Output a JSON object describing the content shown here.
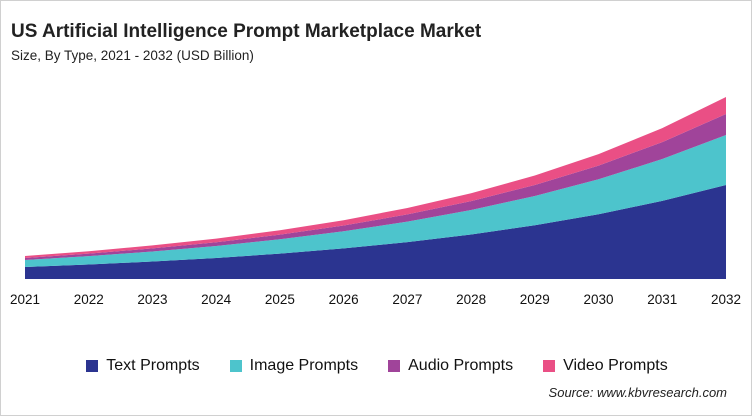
{
  "chart_data": {
    "type": "area",
    "stacked": true,
    "title": "US Artificial Intelligence Prompt Marketplace Market",
    "subtitle": "Size, By Type, 2021 - 2032 (USD Billion)",
    "xlabel": "",
    "ylabel": "",
    "grid": false,
    "y_axis_shown": false,
    "legend_position": "bottom",
    "categories": [
      "2021",
      "2022",
      "2023",
      "2024",
      "2025",
      "2026",
      "2027",
      "2028",
      "2029",
      "2030",
      "2031",
      "2032"
    ],
    "series": [
      {
        "name": "Text Prompts",
        "color": "#2b3490",
        "values": [
          1.2,
          1.45,
          1.75,
          2.1,
          2.54,
          3.06,
          3.69,
          4.45,
          5.37,
          6.47,
          7.81,
          9.4
        ]
      },
      {
        "name": "Image Prompts",
        "color": "#4dc4cc",
        "values": [
          0.7,
          0.84,
          1.0,
          1.2,
          1.43,
          1.71,
          2.05,
          2.45,
          2.93,
          3.5,
          4.19,
          5.0
        ]
      },
      {
        "name": "Audio Prompts",
        "color": "#a0449a",
        "values": [
          0.2,
          0.25,
          0.31,
          0.38,
          0.47,
          0.58,
          0.72,
          0.89,
          1.1,
          1.37,
          1.69,
          2.1
        ]
      },
      {
        "name": "Video Prompts",
        "color": "#ea4f85",
        "values": [
          0.2,
          0.24,
          0.3,
          0.36,
          0.44,
          0.53,
          0.64,
          0.78,
          0.95,
          1.15,
          1.4,
          1.7
        ]
      }
    ],
    "ylim": [
      0,
      18.5
    ]
  },
  "source": "Source: www.kbvresearch.com"
}
